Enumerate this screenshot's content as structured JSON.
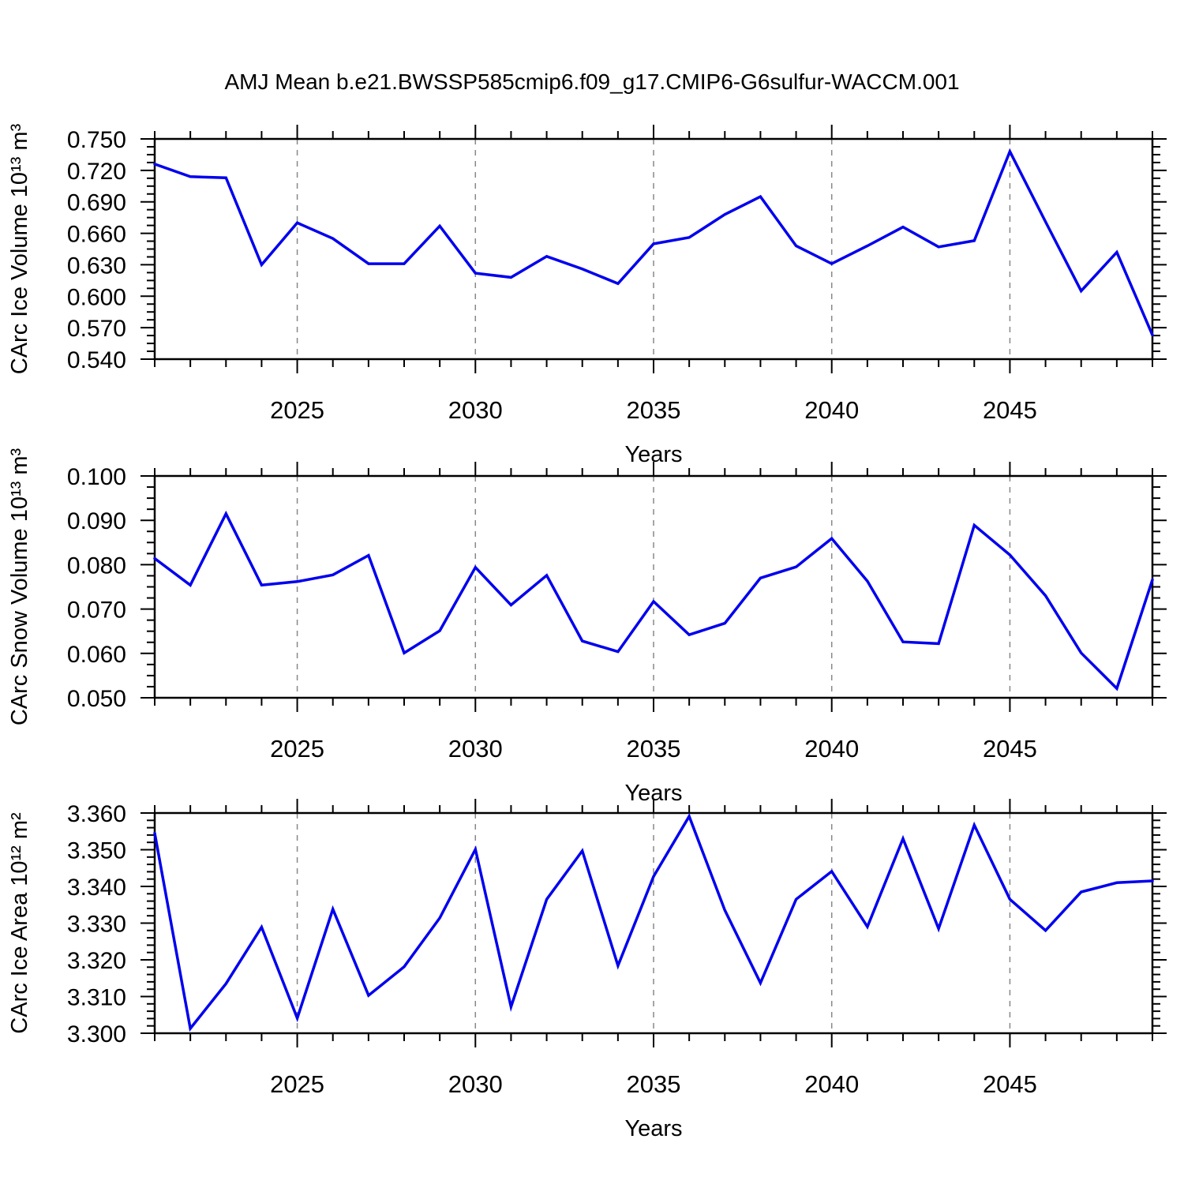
{
  "title": "AMJ Mean b.e21.BWSSP585cmip6.f09_g17.CMIP6-G6sulfur-WACCM.001",
  "colors": {
    "line": "#0000EE",
    "grid": "#888888",
    "axis": "#000000",
    "text": "#000000"
  },
  "x_axis": {
    "label": "Years",
    "major_ticks": [
      2025,
      2030,
      2035,
      2040,
      2045
    ],
    "range": [
      2021,
      2049
    ]
  },
  "chart_data": [
    {
      "type": "line",
      "ylabel": "CArc Ice Volume 10¹³ m³",
      "ylim": [
        0.54,
        0.75
      ],
      "ytick_step": 0.03,
      "yminor_step": 0.0075,
      "ytick_decimals": 3,
      "grid": "dashed-vertical",
      "x": [
        2021,
        2022,
        2023,
        2024,
        2025,
        2026,
        2027,
        2028,
        2029,
        2030,
        2031,
        2032,
        2033,
        2034,
        2035,
        2036,
        2037,
        2038,
        2039,
        2040,
        2041,
        2042,
        2043,
        2044,
        2045,
        2046,
        2047,
        2048,
        2049
      ],
      "values": [
        0.726,
        0.714,
        0.713,
        0.63,
        0.67,
        0.655,
        0.631,
        0.631,
        0.667,
        0.622,
        0.618,
        0.638,
        0.626,
        0.612,
        0.65,
        0.656,
        0.678,
        0.695,
        0.648,
        0.631,
        0.648,
        0.666,
        0.647,
        0.653,
        0.738,
        0.671,
        0.605,
        0.642,
        0.563
      ]
    },
    {
      "type": "line",
      "ylabel": "CArc Snow Volume 10¹³ m³",
      "ylim": [
        0.05,
        0.1
      ],
      "ytick_step": 0.01,
      "yminor_step": 0.0025,
      "ytick_decimals": 3,
      "grid": "dashed-vertical",
      "x": [
        2021,
        2022,
        2023,
        2024,
        2025,
        2026,
        2027,
        2028,
        2029,
        2030,
        2031,
        2032,
        2033,
        2034,
        2035,
        2036,
        2037,
        2038,
        2039,
        2040,
        2041,
        2042,
        2043,
        2044,
        2045,
        2046,
        2047,
        2048,
        2049
      ],
      "values": [
        0.0814,
        0.0754,
        0.0915,
        0.0754,
        0.0762,
        0.0777,
        0.0821,
        0.0601,
        0.0651,
        0.0794,
        0.0709,
        0.0776,
        0.0628,
        0.0604,
        0.0717,
        0.0642,
        0.0668,
        0.077,
        0.0795,
        0.0859,
        0.0763,
        0.0626,
        0.0622,
        0.0889,
        0.0822,
        0.073,
        0.0601,
        0.0521,
        0.0766
      ]
    },
    {
      "type": "line",
      "ylabel": "CArc Ice Area 10¹² m²",
      "ylim": [
        3.3,
        3.36
      ],
      "ytick_step": 0.01,
      "yminor_step": 0.002,
      "ytick_decimals": 3,
      "grid": "dashed-vertical",
      "x": [
        2021,
        2022,
        2023,
        2024,
        2025,
        2026,
        2027,
        2028,
        2029,
        2030,
        2031,
        2032,
        2033,
        2034,
        2035,
        2036,
        2037,
        2038,
        2039,
        2040,
        2041,
        2042,
        2043,
        2044,
        2045,
        2046,
        2047,
        2048,
        2049
      ],
      "values": [
        3.3545,
        3.3013,
        3.3135,
        3.3289,
        3.3041,
        3.3338,
        3.3103,
        3.3181,
        3.3314,
        3.3501,
        3.3072,
        3.3365,
        3.3497,
        3.3184,
        3.3427,
        3.3591,
        3.3335,
        3.3137,
        3.3365,
        3.3441,
        3.329,
        3.353,
        3.3285,
        3.3567,
        3.3365,
        3.328,
        3.3385,
        3.341,
        3.3415
      ]
    }
  ]
}
